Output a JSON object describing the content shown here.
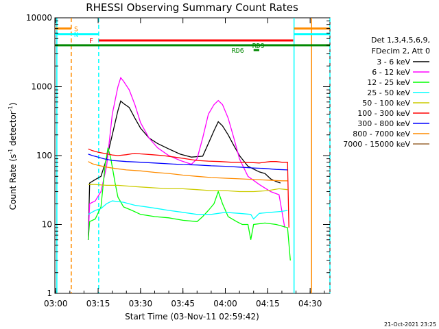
{
  "chart_data": {
    "type": "line",
    "title": "RHESSI Observing Summary Count Rates",
    "xlabel": "Start Time (03-Nov-11 02:59:42)",
    "ylabel": "Count Rate (s",
    "ylabel_sup1": "-1",
    "ylabel_mid": " detector",
    "ylabel_sup2": "-1",
    "ylabel_end": ")",
    "x_ticks": [
      "03:00",
      "03:15",
      "03:30",
      "03:45",
      "04:00",
      "04:15",
      "04:30"
    ],
    "x_tick_minutes": [
      0,
      15,
      30,
      45,
      60,
      75,
      90
    ],
    "xlim_minutes": [
      -0.3,
      97
    ],
    "y_scale": "log",
    "ylim": [
      1,
      10000
    ],
    "y_ticks": [
      "1",
      "10",
      "100",
      "1000",
      "10000"
    ],
    "y_tick_values": [
      1,
      10,
      100,
      1000,
      10000
    ],
    "legend_header": [
      "Det 1,3,4,5,6,9,",
      "FDecim 2, Att 0"
    ],
    "series": [
      {
        "name": "3 - 6 keV",
        "color": "#000000",
        "points": [
          [
            11.5,
            6
          ],
          [
            12,
            40
          ],
          [
            14,
            45
          ],
          [
            16,
            50
          ],
          [
            18,
            90
          ],
          [
            20,
            200
          ],
          [
            22,
            450
          ],
          [
            23,
            620
          ],
          [
            24,
            570
          ],
          [
            26,
            500
          ],
          [
            28,
            350
          ],
          [
            30,
            250
          ],
          [
            33,
            180
          ],
          [
            36,
            150
          ],
          [
            40,
            125
          ],
          [
            44,
            105
          ],
          [
            48,
            95
          ],
          [
            52,
            98
          ],
          [
            54,
            150
          ],
          [
            56,
            230
          ],
          [
            57.5,
            310
          ],
          [
            59,
            270
          ],
          [
            61,
            200
          ],
          [
            63,
            140
          ],
          [
            65,
            100
          ],
          [
            68,
            70
          ],
          [
            72,
            58
          ],
          [
            74,
            55
          ],
          [
            76,
            46
          ],
          [
            78,
            42
          ],
          [
            79.5,
            40
          ]
        ]
      },
      {
        "name": "6 - 12 keV",
        "color": "#ff00ff",
        "points": [
          [
            11.5,
            6
          ],
          [
            12,
            20
          ],
          [
            14,
            22
          ],
          [
            16,
            30
          ],
          [
            18,
            70
          ],
          [
            20,
            400
          ],
          [
            22,
            1000
          ],
          [
            23,
            1350
          ],
          [
            24,
            1200
          ],
          [
            26,
            900
          ],
          [
            28,
            550
          ],
          [
            30,
            300
          ],
          [
            33,
            180
          ],
          [
            36,
            130
          ],
          [
            40,
            100
          ],
          [
            44,
            85
          ],
          [
            48,
            75
          ],
          [
            50,
            90
          ],
          [
            52,
            180
          ],
          [
            54,
            400
          ],
          [
            56,
            550
          ],
          [
            57.5,
            630
          ],
          [
            59,
            550
          ],
          [
            61,
            350
          ],
          [
            63,
            180
          ],
          [
            65,
            90
          ],
          [
            68,
            50
          ],
          [
            72,
            38
          ],
          [
            76,
            30
          ],
          [
            79,
            27
          ],
          [
            81,
            9
          ]
        ]
      },
      {
        "name": "12 - 25 keV",
        "color": "#00ff00",
        "points": [
          [
            11.5,
            6
          ],
          [
            12,
            11
          ],
          [
            14,
            12
          ],
          [
            16,
            18
          ],
          [
            17.5,
            75
          ],
          [
            18.5,
            130
          ],
          [
            19.5,
            90
          ],
          [
            21,
            40
          ],
          [
            22,
            25
          ],
          [
            24,
            18
          ],
          [
            27,
            16
          ],
          [
            30,
            14
          ],
          [
            35,
            13
          ],
          [
            40,
            12.5
          ],
          [
            45,
            11.5
          ],
          [
            50,
            11
          ],
          [
            52,
            13
          ],
          [
            54,
            16
          ],
          [
            56,
            20
          ],
          [
            57.5,
            30
          ],
          [
            59,
            20
          ],
          [
            61,
            13
          ],
          [
            64,
            11
          ],
          [
            66,
            10
          ],
          [
            68,
            10
          ],
          [
            69,
            6
          ],
          [
            70,
            10
          ],
          [
            74,
            10.5
          ],
          [
            78,
            10
          ],
          [
            82,
            9
          ],
          [
            83,
            3
          ]
        ]
      },
      {
        "name": "25 - 50 keV",
        "color": "#00ffff",
        "points": [
          [
            11.5,
            14
          ],
          [
            14,
            16
          ],
          [
            16,
            17
          ],
          [
            18,
            20
          ],
          [
            20,
            22
          ],
          [
            24,
            21
          ],
          [
            28,
            19
          ],
          [
            32,
            18
          ],
          [
            36,
            17
          ],
          [
            40,
            16
          ],
          [
            45,
            15
          ],
          [
            50,
            14
          ],
          [
            55,
            14
          ],
          [
            60,
            15
          ],
          [
            65,
            14.5
          ],
          [
            69,
            14
          ],
          [
            70,
            12
          ],
          [
            72,
            14.5
          ],
          [
            76,
            15
          ],
          [
            80,
            15.5
          ],
          [
            82,
            16
          ]
        ]
      },
      {
        "name": "50 - 100 keV",
        "color": "#cccc00",
        "points": [
          [
            11.5,
            38
          ],
          [
            14,
            38
          ],
          [
            18,
            37
          ],
          [
            22,
            37
          ],
          [
            26,
            36
          ],
          [
            30,
            35
          ],
          [
            35,
            34
          ],
          [
            40,
            33
          ],
          [
            45,
            33
          ],
          [
            50,
            32
          ],
          [
            55,
            31
          ],
          [
            60,
            31
          ],
          [
            65,
            30
          ],
          [
            70,
            30
          ],
          [
            75,
            31
          ],
          [
            79,
            33
          ],
          [
            82,
            32
          ]
        ]
      },
      {
        "name": "100 - 300 keV",
        "color": "#ff0000",
        "points": [
          [
            11.5,
            125
          ],
          [
            13,
            118
          ],
          [
            15,
            112
          ],
          [
            17,
            108
          ],
          [
            20,
            102
          ],
          [
            22,
            100
          ],
          [
            25,
            103
          ],
          [
            28,
            108
          ],
          [
            30,
            106
          ],
          [
            34,
            103
          ],
          [
            38,
            100
          ],
          [
            42,
            95
          ],
          [
            46,
            90
          ],
          [
            50,
            85
          ],
          [
            54,
            83
          ],
          [
            58,
            82
          ],
          [
            62,
            80
          ],
          [
            66,
            80
          ],
          [
            70,
            79
          ],
          [
            72,
            78
          ],
          [
            74,
            80
          ],
          [
            76,
            82
          ],
          [
            78,
            82
          ],
          [
            80,
            80
          ],
          [
            82,
            80
          ],
          [
            82.5,
            9
          ]
        ]
      },
      {
        "name": "300 - 800 keV",
        "color": "#0000ff",
        "points": [
          [
            11.5,
            105
          ],
          [
            13,
            100
          ],
          [
            15,
            95
          ],
          [
            17,
            90
          ],
          [
            20,
            85
          ],
          [
            25,
            82
          ],
          [
            30,
            80
          ],
          [
            35,
            78
          ],
          [
            40,
            76
          ],
          [
            45,
            74
          ],
          [
            50,
            73
          ],
          [
            55,
            71
          ],
          [
            60,
            70
          ],
          [
            65,
            68
          ],
          [
            70,
            66
          ],
          [
            74,
            65
          ],
          [
            78,
            63
          ],
          [
            82,
            62
          ]
        ]
      },
      {
        "name": "800 - 7000 keV",
        "color": "#ff8c00",
        "points": [
          [
            11.5,
            82
          ],
          [
            13,
            76
          ],
          [
            15,
            72
          ],
          [
            18,
            68
          ],
          [
            21,
            65
          ],
          [
            25,
            62
          ],
          [
            30,
            60
          ],
          [
            35,
            57
          ],
          [
            40,
            55
          ],
          [
            45,
            52
          ],
          [
            50,
            50
          ],
          [
            55,
            48
          ],
          [
            60,
            47
          ],
          [
            65,
            46
          ],
          [
            70,
            45
          ],
          [
            75,
            44
          ],
          [
            80,
            43
          ],
          [
            82,
            43
          ]
        ]
      },
      {
        "name": "7000 - 15000 keV",
        "color": "#996633",
        "points": []
      }
    ],
    "attenuator_states": [
      {
        "label": "S",
        "color": "#ff8c00",
        "x_start": -0.3,
        "x_end": 5.5,
        "y": 7000
      },
      {
        "label": "N",
        "color": "#00ffff",
        "x_start": -0.3,
        "x_end": 15.2,
        "y": 5800
      },
      {
        "label": "F",
        "color": "#ff0000",
        "x_start": 15.2,
        "x_end": 84,
        "y": 4700
      },
      {
        "label": "RD9",
        "color": "#008800",
        "x_start": 70,
        "x_end": 72,
        "y": 4000
      },
      {
        "label": "RD6",
        "color": "#008800",
        "x_start": 70,
        "x_end": 72,
        "y": 3400
      }
    ],
    "decimation_line": {
      "color": "#008800",
      "x_start": -0.3,
      "x_end": 97,
      "y": 4000
    },
    "vertical_markers": [
      {
        "x": 0.4,
        "color": "#00ffff",
        "style": "solid"
      },
      {
        "x": 5.5,
        "color": "#ff8c00",
        "style": "dashed"
      },
      {
        "x": 15.2,
        "color": "#00ffff",
        "style": "dashed"
      },
      {
        "x": 84.3,
        "color": "#00ffff",
        "style": "solid"
      },
      {
        "x": 90.5,
        "color": "#ff8c00",
        "style": "solid"
      },
      {
        "x": 97.5,
        "color": "#00ffff",
        "style": "dashed"
      }
    ],
    "right_side_segments": [
      {
        "color": "#ff8c00",
        "x_start": 84.3,
        "x_end": 97,
        "y": 7000
      },
      {
        "color": "#00ffff",
        "x_start": 84.3,
        "x_end": 97,
        "y": 5800
      }
    ]
  },
  "stamp": "21-Oct-2021 23:25"
}
